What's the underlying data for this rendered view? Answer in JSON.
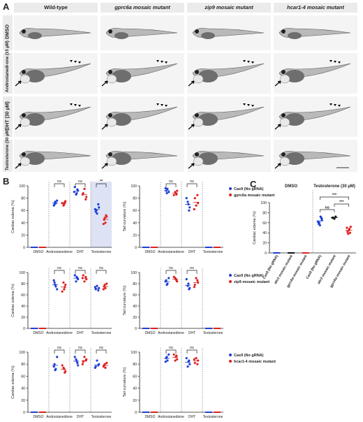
{
  "panels": {
    "a": "A",
    "b": "B",
    "c": "C"
  },
  "panel_a": {
    "columns": [
      "Wild-type",
      "gprc6a mosaic mutant",
      "zip9 mosaic mutant",
      "hcar1-4 mosaic mutant"
    ],
    "rows": [
      "DMSO",
      "Androstanedi-one (15 µM)",
      "DHT (30 µM)",
      "Testosterone (30 µM)"
    ]
  },
  "colors": {
    "blue": "#1f3fd6",
    "red": "#e02020",
    "black": "#111111",
    "highlight": "#dde3f5"
  },
  "chart_data": [
    {
      "type": "scatter",
      "id": "b1",
      "ylabel": "Cardiac edema (%)",
      "ylim": [
        0,
        100
      ],
      "categories": [
        "DMSO",
        "Androstanedione",
        "DHT",
        "Testosterone"
      ],
      "series": [
        {
          "name": "Cas9 (No gRNA)",
          "values": [
            [
              0,
              0,
              0,
              0,
              0
            ],
            [
              70,
              72,
              76,
              68,
              74
            ],
            [
              88,
              92,
              98,
              86,
              94,
              90
            ],
            [
              65,
              58,
              55,
              70,
              62,
              60
            ]
          ]
        },
        {
          "name": "gprc6a mosaic mutant",
          "values": [
            [
              0,
              0,
              0,
              0,
              0
            ],
            [
              70,
              75,
              72,
              68,
              73
            ],
            [
              82,
              88,
              95,
              78,
              86
            ],
            [
              45,
              40,
              50,
              38,
              48,
              52
            ]
          ]
        }
      ],
      "annotations": [
        "ns",
        "ns",
        "**"
      ]
    },
    {
      "type": "scatter",
      "id": "b2",
      "ylabel": "Tail curvature (%)",
      "ylim": [
        0,
        100
      ],
      "categories": [
        "DMSO",
        "Androstanedione",
        "DHT",
        "Testosterone"
      ],
      "series": [
        {
          "name": "Cas9 (No gRNA)",
          "values": [
            [
              0,
              0,
              0,
              0,
              0
            ],
            [
              92,
              95,
              90,
              96,
              88
            ],
            [
              70,
              65,
              80,
              74,
              60
            ],
            [
              0,
              0,
              0,
              0,
              0
            ]
          ]
        },
        {
          "name": "gprc6a mosaic mutant",
          "values": [
            [
              0,
              0,
              0,
              0,
              0
            ],
            [
              88,
              92,
              85,
              90,
              86
            ],
            [
              72,
              80,
              68,
              85,
              62
            ],
            [
              0,
              0,
              0,
              0,
              0
            ]
          ]
        }
      ],
      "annotations": [
        "ns",
        "ns"
      ]
    },
    {
      "type": "scatter",
      "id": "b3",
      "ylabel": "Cardiac edema (%)",
      "ylim": [
        0,
        100
      ],
      "categories": [
        "DMSO",
        "Androstanedione",
        "DHT",
        "Testosterone"
      ],
      "series": [
        {
          "name": "Cas9 (No gRNA)",
          "values": [
            [
              0,
              0,
              0,
              0,
              0
            ],
            [
              82,
              75,
              70,
              86,
              78
            ],
            [
              92,
              88,
              95,
              84,
              90
            ],
            [
              72,
              70,
              76,
              68,
              74
            ]
          ]
        },
        {
          "name": "zip9 mosaic mutant",
          "values": [
            [
              0,
              0,
              0,
              0,
              0
            ],
            [
              70,
              78,
              66,
              82,
              74
            ],
            [
              88,
              95,
              84,
              92,
              90
            ],
            [
              75,
              72,
              80,
              70,
              78
            ]
          ]
        }
      ],
      "annotations": [
        "ns",
        "ns",
        "ns"
      ]
    },
    {
      "type": "scatter",
      "id": "b4",
      "ylabel": "Tail curvature (%)",
      "ylim": [
        0,
        100
      ],
      "categories": [
        "DMSO",
        "Androstanedione",
        "DHT",
        "Testosterone"
      ],
      "series": [
        {
          "name": "Cas9 (No gRNA)",
          "values": [
            [
              0,
              0,
              0,
              0,
              0
            ],
            [
              86,
              80,
              90,
              84,
              78
            ],
            [
              80,
              72,
              88,
              76,
              70
            ],
            [
              0,
              0,
              0,
              0,
              0
            ]
          ]
        },
        {
          "name": "zip9 mosaic mutant",
          "values": [
            [
              0,
              0,
              0,
              0,
              0
            ],
            [
              88,
              84,
              92,
              90,
              86
            ],
            [
              82,
              78,
              90,
              86,
              74
            ],
            [
              0,
              0,
              0,
              0,
              0
            ]
          ]
        }
      ],
      "annotations": [
        "ns",
        "ns"
      ]
    },
    {
      "type": "scatter",
      "id": "b5",
      "ylabel": "Cardiac edema (%)",
      "ylim": [
        0,
        100
      ],
      "categories": [
        "DMSO",
        "Androstanedione",
        "DHT",
        "Testosterone"
      ],
      "series": [
        {
          "name": "Cas9 (No gRNA)",
          "values": [
            [
              0,
              0,
              0,
              0,
              0
            ],
            [
              80,
              72,
              92,
              76,
              70
            ],
            [
              85,
              78,
              92,
              88,
              82
            ],
            [
              80,
              76,
              86,
              78,
              74
            ]
          ]
        },
        {
          "name": "hcar1-4 mosaic mutant",
          "values": [
            [
              0,
              0,
              0,
              0,
              0
            ],
            [
              72,
              68,
              78,
              74,
              66
            ],
            [
              88,
              84,
              92,
              86,
              80
            ],
            [
              78,
              74,
              82,
              76,
              80
            ]
          ]
        }
      ],
      "annotations": [
        "ns",
        "ns",
        "ns"
      ]
    },
    {
      "type": "scatter",
      "id": "b6",
      "ylabel": "Tail curvature (%)",
      "ylim": [
        0,
        100
      ],
      "categories": [
        "DMSO",
        "Androstanedione",
        "DHT",
        "Testosterone"
      ],
      "series": [
        {
          "name": "Cas9 (No gRNA)",
          "values": [
            [
              0,
              0,
              0,
              0,
              0
            ],
            [
              90,
              86,
              96,
              84,
              92
            ],
            [
              84,
              80,
              90,
              76,
              86
            ],
            [
              0,
              0,
              0,
              0,
              0
            ]
          ]
        },
        {
          "name": "hcar1-4 mosaic mutant",
          "values": [
            [
              0,
              0,
              0,
              0,
              0
            ],
            [
              92,
              88,
              96,
              86,
              94
            ],
            [
              86,
              82,
              90,
              80,
              88
            ],
            [
              0,
              0,
              0,
              0,
              0
            ]
          ]
        }
      ],
      "annotations": [
        "ns",
        "ns"
      ]
    },
    {
      "type": "scatter",
      "id": "c",
      "ylabel": "Cardiac edema (%)",
      "ylim": [
        0,
        100
      ],
      "groups": [
        "DMSO",
        "Testosterone (30 µM)"
      ],
      "categories": [
        "Cas9 (No gRNA)",
        "ahr2 mosaic mutant",
        "gprc6a mosaic mutant",
        "Cas9 (No gRNA)",
        "ahr2 mosaic mutant",
        "gprc6a mosaic mutant"
      ],
      "values": [
        [
          0,
          0,
          0,
          0,
          0
        ],
        [
          0,
          0,
          0,
          0,
          0
        ],
        [
          0,
          0,
          0,
          0,
          0
        ],
        [
          65,
          58,
          55,
          70,
          62,
          60,
          72,
          68
        ],
        [
          70,
          68,
          72,
          70
        ],
        [
          45,
          40,
          50,
          38,
          48,
          52,
          42
        ]
      ],
      "annotations": [
        "ns",
        "***",
        "***"
      ]
    }
  ],
  "legends": [
    {
      "id": "b1",
      "items": [
        {
          "text": "Cas9 (No gRNA)"
        },
        {
          "text": "gprc6a mosaic mutant"
        }
      ]
    },
    {
      "id": "b3",
      "items": [
        {
          "text": "Cas9 (No gRNA)"
        },
        {
          "text": "zip9 mosaic mutant"
        }
      ]
    },
    {
      "id": "b5",
      "items": [
        {
          "text": "Cas9 (No gRNA)"
        },
        {
          "text": "hcar1-4 mosaic mutant"
        }
      ]
    }
  ]
}
